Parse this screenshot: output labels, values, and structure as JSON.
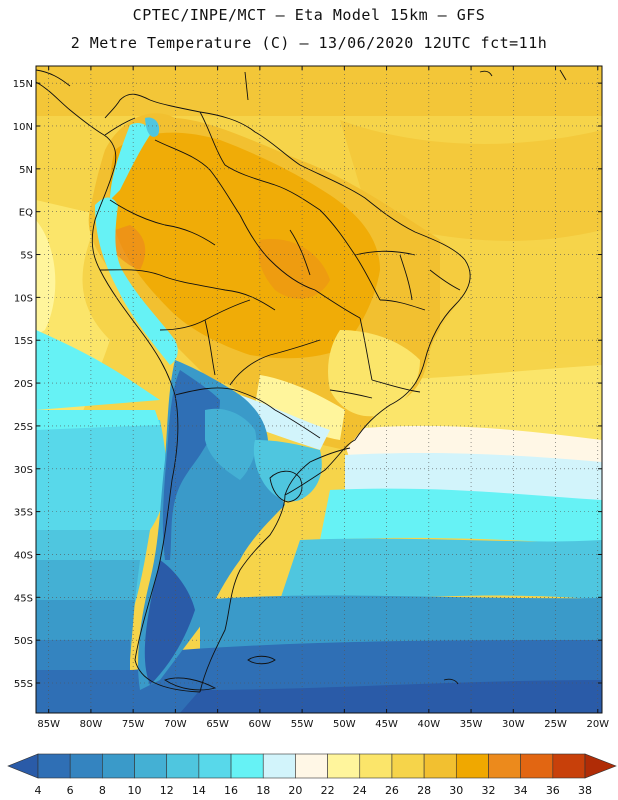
{
  "header": {
    "line1": "CPTEC/INPE/MCT –  Eta Model 15km – GFS",
    "line2": "2 Metre Temperature (C) – 13/06/2020 12UTC fct=11h"
  },
  "axes": {
    "lat_labels": [
      "15N",
      "10N",
      "5N",
      "EQ",
      "5S",
      "10S",
      "15S",
      "20S",
      "25S",
      "30S",
      "35S",
      "40S",
      "45S",
      "50S",
      "55S"
    ],
    "lat_values": [
      15,
      10,
      5,
      0,
      -5,
      -10,
      -15,
      -20,
      -25,
      -30,
      -35,
      -40,
      -45,
      -50,
      -55
    ],
    "lon_labels": [
      "85W",
      "80W",
      "75W",
      "70W",
      "65W",
      "60W",
      "55W",
      "50W",
      "45W",
      "40W",
      "35W",
      "30W",
      "25W",
      "20W"
    ],
    "lon_values": [
      -85,
      -80,
      -75,
      -70,
      -65,
      -60,
      -55,
      -50,
      -45,
      -40,
      -35,
      -30,
      -25,
      -20
    ]
  },
  "colorbar": {
    "labels": [
      "4",
      "6",
      "8",
      "10",
      "12",
      "14",
      "16",
      "18",
      "20",
      "22",
      "24",
      "26",
      "28",
      "30",
      "32",
      "34",
      "36",
      "38"
    ],
    "colors": [
      "#2a5ba8",
      "#2f6fb5",
      "#3484c0",
      "#3a9ac9",
      "#44b0d4",
      "#4fc6df",
      "#58d8ea",
      "#66f2f5",
      "#d2f4fb",
      "#fff7e6",
      "#fff59c",
      "#fbe56a",
      "#f6d44a",
      "#f2c030",
      "#f0a800",
      "#ec8a1c",
      "#e26612",
      "#c8400a",
      "#b02c06"
    ]
  }
}
